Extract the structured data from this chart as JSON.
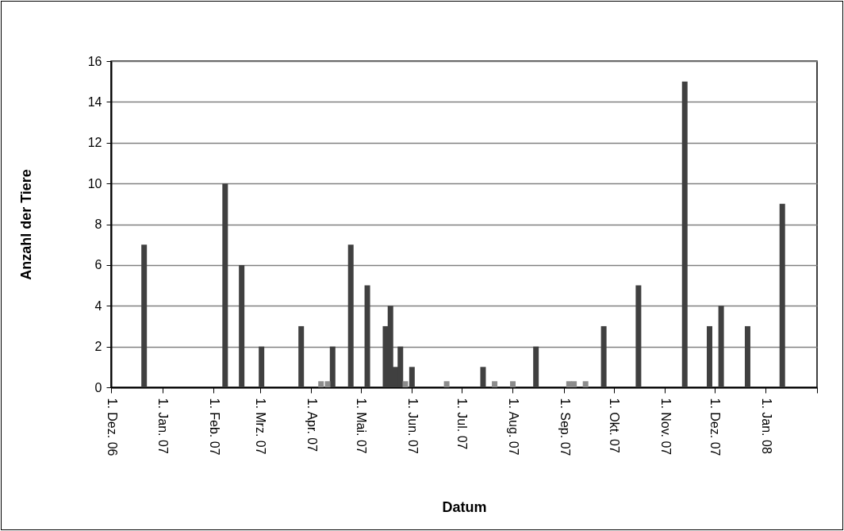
{
  "chart_data": {
    "type": "bar",
    "xlabel": "Datum",
    "ylabel": "Anzahl der Tiere",
    "grid": "y",
    "xlim": [
      "2006-12-01",
      "2008-02-01"
    ],
    "xticks": [
      {
        "value": "2006-12-01",
        "label": "1. Dez. 06"
      },
      {
        "value": "2007-01-01",
        "label": "1. Jan. 07"
      },
      {
        "value": "2007-02-01",
        "label": "1. Feb. 07"
      },
      {
        "value": "2007-03-01",
        "label": "1. Mrz. 07"
      },
      {
        "value": "2007-04-01",
        "label": "1. Apr. 07"
      },
      {
        "value": "2007-05-01",
        "label": "1. Mai. 07"
      },
      {
        "value": "2007-06-01",
        "label": "1. Jun. 07"
      },
      {
        "value": "2007-07-01",
        "label": "1. Jul. 07"
      },
      {
        "value": "2007-08-01",
        "label": "1. Aug. 07"
      },
      {
        "value": "2007-09-01",
        "label": "1. Sep. 07"
      },
      {
        "value": "2007-10-01",
        "label": "1. Okt. 07"
      },
      {
        "value": "2007-11-01",
        "label": "1. Nov. 07"
      },
      {
        "value": "2007-12-01",
        "label": "1. Dez. 07"
      },
      {
        "value": "2008-01-01",
        "label": "1. Jan. 08"
      },
      {
        "value": "2008-02-01",
        "label": null
      }
    ],
    "ylim": [
      0,
      16
    ],
    "yticks": [
      0,
      2,
      4,
      6,
      8,
      10,
      12,
      14,
      16
    ],
    "series": [
      {
        "color": "#404040",
        "x": [
          "2006-12-21",
          "2007-02-08",
          "2007-02-18",
          "2007-03-02",
          "2007-03-26",
          "2007-04-14",
          "2007-04-25",
          "2007-05-05",
          "2007-05-16",
          "2007-05-19",
          "2007-05-22",
          "2007-05-25",
          "2007-06-01",
          "2007-07-14",
          "2007-08-15",
          "2007-09-25",
          "2007-10-16",
          "2007-11-13",
          "2007-11-28",
          "2007-12-05",
          "2007-12-21",
          "2008-01-11"
        ],
        "values": [
          7,
          10,
          6,
          2,
          3,
          2,
          7,
          5,
          3,
          4,
          1,
          2,
          1,
          1,
          2,
          3,
          5,
          15,
          3,
          4,
          3,
          9
        ]
      },
      {
        "color": "#8c8c8c",
        "x": [
          "2007-04-07",
          "2007-04-11",
          "2007-05-28",
          "2007-06-22",
          "2007-07-21",
          "2007-08-01",
          "2007-09-04",
          "2007-09-07",
          "2007-09-14"
        ],
        "values": [
          0.3,
          0.3,
          0.3,
          0.3,
          0.3,
          0.3,
          0.3,
          0.3,
          0.3
        ]
      }
    ]
  }
}
